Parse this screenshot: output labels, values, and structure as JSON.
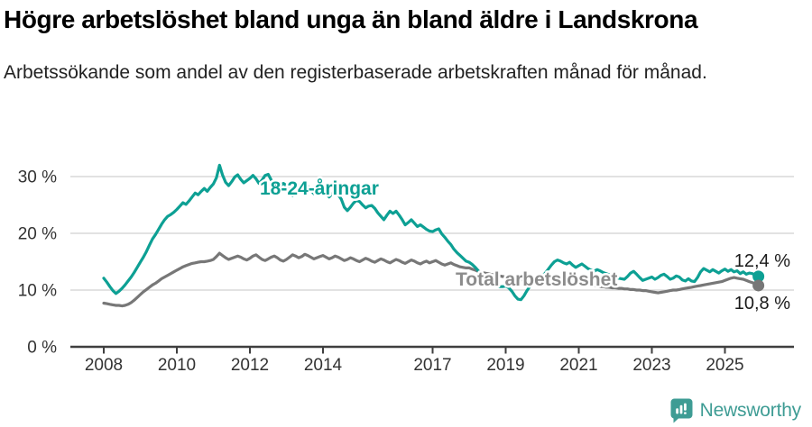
{
  "chart_data": {
    "type": "line",
    "title": "Högre arbetslöshet bland unga än bland äldre i Landskrona",
    "subtitle": "Arbetssökande som andel av den registerbaserade arbetskraften månad för månad.",
    "grid": "horizontal",
    "legend": "inline-series-labels",
    "x_axis": {
      "start_year": 2008,
      "points_per_year": 12,
      "end_label": "2025-12",
      "tick_years": [
        2008,
        2010,
        2012,
        2014,
        2017,
        2019,
        2021,
        2023,
        2025
      ],
      "tick_labels": [
        "2008",
        "2010",
        "2012",
        "2014",
        "2017",
        "2019",
        "2021",
        "2023",
        "2025"
      ]
    },
    "y_axis": {
      "unit": "%",
      "ticks": [
        {
          "value": 0,
          "label": "0 %"
        },
        {
          "value": 10,
          "label": "10 %"
        },
        {
          "value": 20,
          "label": "20 %"
        },
        {
          "value": 30,
          "label": "30 %"
        }
      ]
    },
    "colors": {
      "grid": "#D9D9D9",
      "axis": "#3F3F3F",
      "tick_text": "#333333",
      "end_label_text": "#1A1A1A"
    },
    "series": [
      {
        "name": "18-24-åringar",
        "color": "#0DA094",
        "label_color": "#0DA094",
        "end_label": "12,4 %",
        "end_value": 12.4,
        "values": [
          12.1,
          11.4,
          10.6,
          9.9,
          9.4,
          9.8,
          10.3,
          10.9,
          11.6,
          12.3,
          13.1,
          14.0,
          14.9,
          15.8,
          16.8,
          17.9,
          19.0,
          19.8,
          20.7,
          21.6,
          22.4,
          23.0,
          23.3,
          23.7,
          24.2,
          24.8,
          25.4,
          25.1,
          25.7,
          26.4,
          27.1,
          26.8,
          27.4,
          27.9,
          27.4,
          28.1,
          28.7,
          29.8,
          32.0,
          30.3,
          29.0,
          28.4,
          29.1,
          29.9,
          30.3,
          29.5,
          28.9,
          29.3,
          29.7,
          30.2,
          29.6,
          28.8,
          29.4,
          30.2,
          30.4,
          29.4,
          28.5,
          28.0,
          28.4,
          28.8,
          28.4,
          27.6,
          26.6,
          27.4,
          28.2,
          28.8,
          28.9,
          28.3,
          27.6,
          27.0,
          27.5,
          28.0,
          27.8,
          27.0,
          26.4,
          27.0,
          27.5,
          26.8,
          26.0,
          24.6,
          24.0,
          24.6,
          25.3,
          25.8,
          25.6,
          25.0,
          24.5,
          24.8,
          24.9,
          24.4,
          23.6,
          23.0,
          22.4,
          23.2,
          23.9,
          23.5,
          23.9,
          23.2,
          22.4,
          21.5,
          21.9,
          22.4,
          21.8,
          21.2,
          21.5,
          21.1,
          20.7,
          20.4,
          20.3,
          20.6,
          20.8,
          19.9,
          19.3,
          18.6,
          18.0,
          17.2,
          16.6,
          16.1,
          15.6,
          15.1,
          14.9,
          14.5,
          14.0,
          13.4,
          12.8,
          12.2,
          11.7,
          11.2,
          10.9,
          10.7,
          10.6,
          10.6,
          10.7,
          10.4,
          9.8,
          9.0,
          8.4,
          8.3,
          9.0,
          9.9,
          10.7,
          11.3,
          11.7,
          12.0,
          12.4,
          13.0,
          13.7,
          14.4,
          15.0,
          15.3,
          15.1,
          14.8,
          14.6,
          14.9,
          14.4,
          14.0,
          14.3,
          14.6,
          14.2,
          13.8,
          13.5,
          13.3,
          13.6,
          13.4,
          13.1,
          12.9,
          12.7,
          12.5,
          12.3,
          12.1,
          12.0,
          11.9,
          12.4,
          13.0,
          13.3,
          12.8,
          12.2,
          11.7,
          11.9,
          12.1,
          12.3,
          11.9,
          12.2,
          12.6,
          12.8,
          12.4,
          11.9,
          12.1,
          12.5,
          12.3,
          11.8,
          11.6,
          12.0,
          11.6,
          11.5,
          12.2,
          13.2,
          13.8,
          13.5,
          13.2,
          13.6,
          13.3,
          13.0,
          13.4,
          13.7,
          13.3,
          13.6,
          13.2,
          13.4,
          12.9,
          13.2,
          12.8,
          13.0,
          12.9,
          12.6,
          12.4
        ]
      },
      {
        "name": "Total arbetslöshet",
        "color": "#777777",
        "label_color": "#8C8C8C",
        "end_label": "10,8 %",
        "end_value": 10.8,
        "values": [
          7.7,
          7.6,
          7.5,
          7.4,
          7.3,
          7.3,
          7.2,
          7.3,
          7.5,
          7.8,
          8.2,
          8.7,
          9.2,
          9.7,
          10.1,
          10.5,
          10.9,
          11.2,
          11.6,
          12.0,
          12.3,
          12.6,
          12.9,
          13.2,
          13.5,
          13.8,
          14.1,
          14.3,
          14.5,
          14.7,
          14.8,
          14.9,
          15.0,
          15.0,
          15.1,
          15.2,
          15.4,
          15.9,
          16.5,
          16.1,
          15.7,
          15.4,
          15.6,
          15.8,
          16.0,
          15.8,
          15.5,
          15.3,
          15.6,
          16.0,
          16.2,
          15.8,
          15.4,
          15.2,
          15.5,
          15.8,
          16.0,
          15.7,
          15.3,
          15.1,
          15.4,
          15.8,
          16.2,
          16.0,
          15.7,
          15.9,
          16.3,
          16.1,
          15.8,
          15.5,
          15.7,
          15.9,
          16.1,
          15.8,
          15.5,
          15.7,
          16.0,
          15.8,
          15.5,
          15.2,
          15.4,
          15.7,
          15.5,
          15.2,
          15.0,
          15.3,
          15.6,
          15.4,
          15.1,
          14.9,
          15.2,
          15.5,
          15.3,
          15.0,
          14.8,
          15.1,
          15.4,
          15.2,
          14.9,
          14.7,
          15.0,
          15.3,
          15.1,
          14.8,
          14.6,
          14.9,
          15.1,
          14.8,
          15.0,
          15.2,
          14.9,
          14.6,
          14.4,
          14.6,
          14.8,
          14.5,
          14.3,
          14.1,
          14.0,
          13.9,
          13.9,
          13.7,
          13.5,
          13.3,
          13.1,
          13.0,
          12.9,
          12.8,
          12.7,
          12.6,
          12.5,
          12.4,
          12.3,
          12.2,
          12.1,
          12.0,
          11.9,
          11.8,
          11.8,
          11.7,
          11.7,
          11.6,
          11.6,
          11.5,
          11.7,
          12.0,
          12.3,
          12.5,
          12.6,
          12.6,
          12.5,
          12.4,
          12.3,
          12.2,
          12.0,
          11.8,
          11.6,
          11.4,
          11.2,
          11.0,
          10.9,
          10.8,
          10.7,
          10.6,
          10.6,
          10.5,
          10.5,
          10.4,
          10.4,
          10.3,
          10.3,
          10.2,
          10.2,
          10.1,
          10.1,
          10.0,
          10.0,
          9.9,
          9.9,
          9.8,
          9.7,
          9.6,
          9.5,
          9.6,
          9.7,
          9.8,
          9.9,
          10.0,
          10.0,
          10.1,
          10.2,
          10.3,
          10.4,
          10.5,
          10.6,
          10.7,
          10.8,
          10.9,
          11.0,
          11.1,
          11.2,
          11.3,
          11.4,
          11.5,
          11.7,
          11.9,
          12.1,
          12.2,
          12.1,
          12.0,
          11.9,
          11.7,
          11.5,
          11.3,
          11.1,
          10.8
        ]
      }
    ]
  },
  "footer": {
    "brand": "Newsworthy"
  }
}
